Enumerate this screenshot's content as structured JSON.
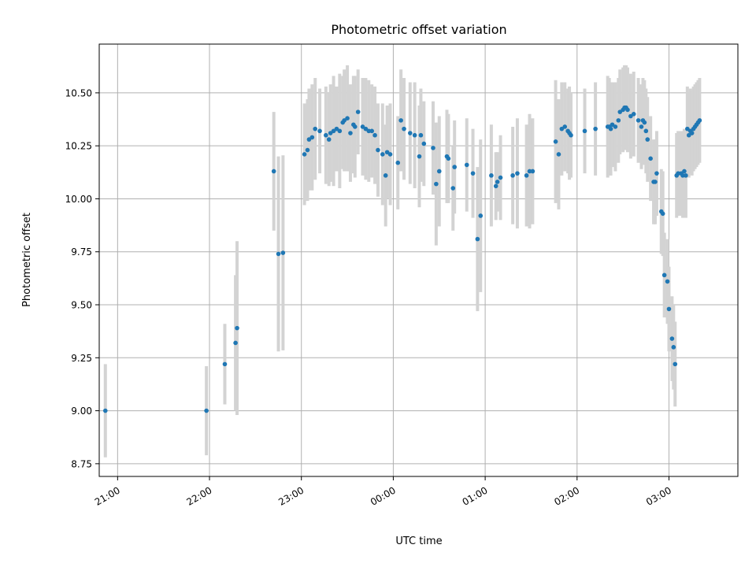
{
  "chart_data": {
    "type": "scatter",
    "title": "Photometric offset variation",
    "xlabel": "UTC time",
    "ylabel": "Photometric offset",
    "xlim": [
      "20:48",
      "03:45"
    ],
    "ylim": [
      8.69,
      10.73
    ],
    "x_ticks": [
      "21:00",
      "22:00",
      "23:00",
      "00:00",
      "01:00",
      "02:00",
      "03:00"
    ],
    "y_ticks": [
      "8.75",
      "9.00",
      "9.25",
      "9.50",
      "9.75",
      "10.00",
      "10.25",
      "10.50"
    ],
    "grid": true,
    "colors": {
      "point": "#1f77b4",
      "errorbar": "#d3d3d3",
      "grid": "#b0b0b0"
    },
    "series": [
      {
        "x": [
          "20:52",
          "21:58",
          "22:10",
          "22:17",
          "22:18",
          "22:42",
          "22:45",
          "22:48",
          "23:02",
          "23:04",
          "23:05",
          "23:07",
          "23:09",
          "23:12",
          "23:16",
          "23:18",
          "23:19",
          "23:21",
          "23:23",
          "23:25",
          "23:27",
          "23:28",
          "23:30",
          "23:32",
          "23:34",
          "23:35",
          "23:37",
          "23:40",
          "23:42",
          "23:44",
          "23:46",
          "23:48",
          "23:50",
          "23:53",
          "23:55",
          "23:56",
          "23:58",
          "24:03",
          "24:05",
          "24:07",
          "24:11",
          "24:14",
          "24:17",
          "24:18",
          "24:20",
          "24:26",
          "24:28",
          "24:30",
          "24:35",
          "24:36",
          "24:39",
          "24:40",
          "24:48",
          "24:52",
          "24:55",
          "24:57",
          "25:04",
          "25:07",
          "25:08",
          "25:10",
          "25:18",
          "25:21",
          "25:27",
          "25:29",
          "25:31",
          "25:46",
          "25:48",
          "25:50",
          "25:52",
          "25:54",
          "25:55",
          "25:56",
          "26:05",
          "26:12",
          "26:20",
          "26:21",
          "26:22",
          "26:23",
          "26:25",
          "26:27",
          "26:28",
          "26:30",
          "26:31",
          "26:32",
          "26:33",
          "26:35",
          "26:37",
          "26:40",
          "26:42",
          "26:43",
          "26:44",
          "26:45",
          "26:46",
          "26:48",
          "26:50",
          "26:51",
          "26:52",
          "26:55",
          "26:56",
          "26:57",
          "26:59",
          "27:00",
          "27:02",
          "27:03",
          "27:04",
          "27:05",
          "27:06",
          "27:08",
          "27:09",
          "27:10",
          "27:11",
          "27:12",
          "27:13",
          "27:14",
          "27:15",
          "27:16",
          "27:17",
          "27:18",
          "27:19",
          "27:20"
        ],
        "y": [
          9.0,
          9.0,
          9.22,
          9.32,
          9.39,
          10.13,
          9.74,
          9.745,
          10.21,
          10.23,
          10.28,
          10.29,
          10.33,
          10.32,
          10.3,
          10.28,
          10.31,
          10.32,
          10.33,
          10.32,
          10.36,
          10.37,
          10.38,
          10.31,
          10.35,
          10.34,
          10.41,
          10.34,
          10.33,
          10.32,
          10.32,
          10.3,
          10.23,
          10.21,
          10.11,
          10.22,
          10.21,
          10.17,
          10.37,
          10.33,
          10.31,
          10.3,
          10.2,
          10.3,
          10.26,
          10.24,
          10.07,
          10.13,
          10.2,
          10.19,
          10.05,
          10.15,
          10.16,
          10.12,
          9.81,
          9.92,
          10.11,
          10.06,
          10.08,
          10.1,
          10.11,
          10.12,
          10.11,
          10.13,
          10.13,
          10.27,
          10.21,
          10.33,
          10.34,
          10.32,
          10.31,
          10.3,
          10.32,
          10.33,
          10.34,
          10.34,
          10.33,
          10.35,
          10.34,
          10.37,
          10.41,
          10.42,
          10.43,
          10.43,
          10.42,
          10.39,
          10.4,
          10.37,
          10.34,
          10.37,
          10.36,
          10.32,
          10.28,
          10.19,
          10.08,
          10.08,
          10.12,
          9.94,
          9.93,
          9.64,
          9.61,
          9.48,
          9.34,
          9.3,
          9.22,
          10.11,
          10.12,
          10.12,
          10.11,
          10.13,
          10.11,
          10.33,
          10.3,
          10.32,
          10.31,
          10.33,
          10.34,
          10.35,
          10.36,
          10.37
        ],
        "yerr": [
          0.22,
          0.21,
          0.19,
          0.32,
          0.41,
          0.28,
          0.46,
          0.46,
          0.24,
          0.24,
          0.24,
          0.25,
          0.24,
          0.2,
          0.23,
          0.22,
          0.23,
          0.26,
          0.2,
          0.27,
          0.22,
          0.24,
          0.25,
          0.23,
          0.23,
          0.24,
          0.2,
          0.23,
          0.24,
          0.24,
          0.22,
          0.23,
          0.22,
          0.24,
          0.24,
          0.22,
          0.24,
          0.22,
          0.24,
          0.24,
          0.24,
          0.25,
          0.24,
          0.22,
          0.2,
          0.22,
          0.29,
          0.26,
          0.22,
          0.21,
          0.2,
          0.22,
          0.22,
          0.21,
          0.34,
          0.36,
          0.24,
          0.16,
          0.14,
          0.2,
          0.23,
          0.26,
          0.24,
          0.27,
          0.25,
          0.29,
          0.26,
          0.22,
          0.21,
          0.2,
          0.22,
          0.2,
          0.2,
          0.22,
          0.24,
          0.23,
          0.22,
          0.2,
          0.21,
          0.2,
          0.2,
          0.2,
          0.2,
          0.2,
          0.2,
          0.2,
          0.2,
          0.2,
          0.2,
          0.2,
          0.2,
          0.2,
          0.2,
          0.2,
          0.2,
          0.2,
          0.2,
          0.2,
          0.2,
          0.2,
          0.2,
          0.2,
          0.2,
          0.2,
          0.2,
          0.2,
          0.2,
          0.2,
          0.2,
          0.2,
          0.2,
          0.2,
          0.2,
          0.2,
          0.2,
          0.2,
          0.2,
          0.2,
          0.2,
          0.2
        ]
      }
    ]
  }
}
